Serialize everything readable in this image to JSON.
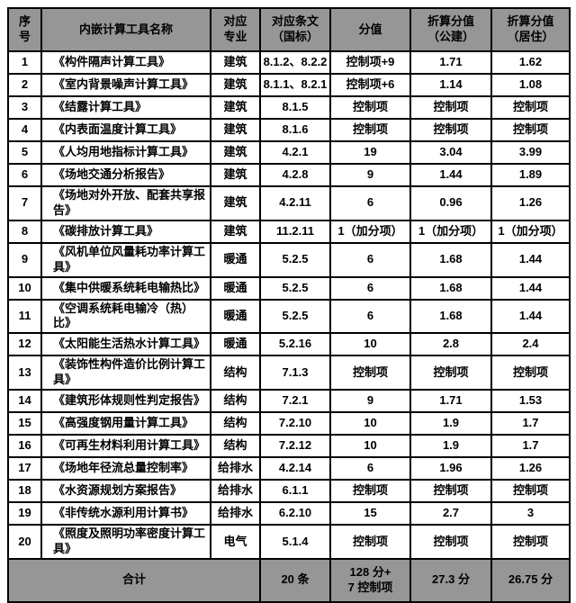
{
  "colors": {
    "header_bg": "#969696",
    "footer_bg": "#969696",
    "body_bg": "#ffffff",
    "border": "#000000",
    "text": "#000000"
  },
  "table": {
    "columns": [
      {
        "key": "index",
        "label": "序\n号"
      },
      {
        "key": "name",
        "label": "内嵌计算工具名称"
      },
      {
        "key": "major",
        "label": "对应\n专业"
      },
      {
        "key": "clause",
        "label": "对应条文\n（国标）"
      },
      {
        "key": "score",
        "label": "分值"
      },
      {
        "key": "public",
        "label": "折算分值\n（公建）"
      },
      {
        "key": "resid",
        "label": "折算分值\n（居住）"
      }
    ],
    "rows": [
      [
        "1",
        "《构件隔声计算工具》",
        "建筑",
        "8.1.2、8.2.2",
        "控制项+9",
        "1.71",
        "1.62"
      ],
      [
        "2",
        "《室内背景噪声计算工具》",
        "建筑",
        "8.1.1、8.2.1",
        "控制项+6",
        "1.14",
        "1.08"
      ],
      [
        "3",
        "《结露计算工具》",
        "建筑",
        "8.1.5",
        "控制项",
        "控制项",
        "控制项"
      ],
      [
        "4",
        "《内表面温度计算工具》",
        "建筑",
        "8.1.6",
        "控制项",
        "控制项",
        "控制项"
      ],
      [
        "5",
        "《人均用地指标计算工具》",
        "建筑",
        "4.2.1",
        "19",
        "3.04",
        "3.99"
      ],
      [
        "6",
        "《场地交通分析报告》",
        "建筑",
        "4.2.8",
        "9",
        "1.44",
        "1.89"
      ],
      [
        "7",
        "《场地对外开放、配套共享报告》",
        "建筑",
        "4.2.11",
        "6",
        "0.96",
        "1.26"
      ],
      [
        "8",
        "《碳排放计算工具》",
        "建筑",
        "11.2.11",
        "1（加分项）",
        "1（加分项）",
        "1（加分项）"
      ],
      [
        "9",
        "《风机单位风量耗功率计算工具》",
        "暖通",
        "5.2.5",
        "6",
        "1.68",
        "1.44"
      ],
      [
        "10",
        "《集中供暖系统耗电输热比》",
        "暖通",
        "5.2.5",
        "6",
        "1.68",
        "1.44"
      ],
      [
        "11",
        "《空调系统耗电输冷（热）比》",
        "暖通",
        "5.2.5",
        "6",
        "1.68",
        "1.44"
      ],
      [
        "12",
        "《太阳能生活热水计算工具》",
        "暖通",
        "5.2.16",
        "10",
        "2.8",
        "2.4"
      ],
      [
        "13",
        "《装饰性构件造价比例计算工具》",
        "结构",
        "7.1.3",
        "控制项",
        "控制项",
        "控制项"
      ],
      [
        "14",
        "《建筑形体规则性判定报告》",
        "结构",
        "7.2.1",
        "9",
        "1.71",
        "1.53"
      ],
      [
        "15",
        "《高强度钢用量计算工具》",
        "结构",
        "7.2.10",
        "10",
        "1.9",
        "1.7"
      ],
      [
        "16",
        "《可再生材料利用计算工具》",
        "结构",
        "7.2.12",
        "10",
        "1.9",
        "1.7"
      ],
      [
        "17",
        "《场地年径流总量控制率》",
        "给排水",
        "4.2.14",
        "6",
        "1.96",
        "1.26"
      ],
      [
        "18",
        "《水资源规划方案报告》",
        "给排水",
        "6.1.1",
        "控制项",
        "控制项",
        "控制项"
      ],
      [
        "19",
        "《非传统水源利用计算书》",
        "给排水",
        "6.2.10",
        "15",
        "2.7",
        "3"
      ],
      [
        "20",
        "《照度及照明功率密度计算工具》",
        "电气",
        "5.1.4",
        "控制项",
        "控制项",
        "控制项"
      ]
    ],
    "footer": {
      "label": "合计",
      "clause_total": "20 条",
      "score_total": "128 分+\n7 控制项",
      "public_total": "27.3 分",
      "residential_total": "26.75 分"
    }
  }
}
